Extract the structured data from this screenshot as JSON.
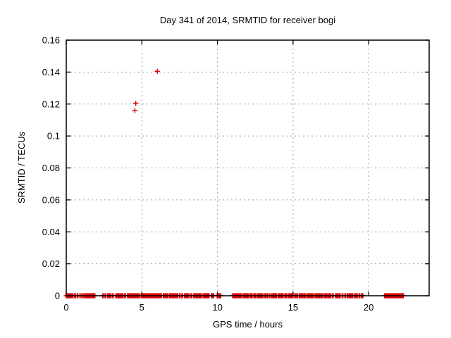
{
  "chart_data": {
    "type": "scatter",
    "title": "Day 341 of 2014, SRMTID for receiver bogi",
    "xlabel": "GPS time / hours",
    "ylabel": "SRMTID / TECUs",
    "xlim": [
      0,
      24
    ],
    "ylim": [
      0,
      0.16
    ],
    "xtick_values": [
      0,
      5,
      10,
      15,
      20
    ],
    "xtick_labels": [
      "0",
      "5",
      "10",
      "15",
      "20"
    ],
    "ytick_values": [
      0,
      0.02,
      0.04,
      0.06,
      0.08,
      0.1,
      0.12,
      0.14,
      0.16
    ],
    "ytick_labels": [
      "0",
      "0.02",
      "0.04",
      "0.06",
      "0.08",
      "0.1",
      "0.12",
      "0.14",
      "0.16"
    ],
    "grid": true,
    "legend": "none",
    "marker": "plus",
    "marker_color": "#e00000",
    "grid_color": "#a0a0a0",
    "border_color": "#000000",
    "outlier_points": [
      [
        4.54,
        0.116
      ],
      [
        4.6,
        0.1205
      ],
      [
        6.02,
        0.1405
      ]
    ],
    "zero_y": 0,
    "zero_value_segments": [
      [
        0.0,
        0.45
      ],
      [
        0.55,
        0.62
      ],
      [
        0.72,
        0.78
      ],
      [
        0.9,
        0.98
      ],
      [
        1.08,
        1.14
      ],
      [
        1.22,
        1.9
      ],
      [
        2.4,
        2.46
      ],
      [
        2.56,
        2.62
      ],
      [
        2.74,
        2.94
      ],
      [
        3.04,
        3.12
      ],
      [
        3.28,
        3.76
      ],
      [
        3.86,
        3.92
      ],
      [
        4.05,
        4.85
      ],
      [
        4.95,
        6.3
      ],
      [
        6.42,
        6.72
      ],
      [
        6.82,
        7.38
      ],
      [
        7.48,
        7.54
      ],
      [
        7.64,
        7.7
      ],
      [
        7.82,
        8.12
      ],
      [
        8.24,
        8.3
      ],
      [
        8.42,
        8.95
      ],
      [
        9.05,
        9.45
      ],
      [
        9.6,
        9.75
      ],
      [
        9.97,
        10.02
      ],
      [
        10.08,
        10.13
      ],
      [
        10.18,
        10.22
      ],
      [
        11.0,
        11.6
      ],
      [
        11.7,
        12.05
      ],
      [
        12.15,
        12.3
      ],
      [
        12.4,
        12.55
      ],
      [
        12.65,
        13.0
      ],
      [
        13.1,
        13.3
      ],
      [
        13.4,
        13.46
      ],
      [
        13.56,
        13.9
      ],
      [
        14.0,
        14.35
      ],
      [
        14.45,
        14.55
      ],
      [
        14.65,
        15.0
      ],
      [
        15.1,
        15.3
      ],
      [
        15.4,
        15.85
      ],
      [
        15.95,
        16.35
      ],
      [
        16.45,
        16.95
      ],
      [
        17.05,
        17.5
      ],
      [
        17.6,
        17.66
      ],
      [
        17.8,
        18.12
      ],
      [
        18.24,
        18.3
      ],
      [
        18.42,
        18.48
      ],
      [
        18.58,
        18.95
      ],
      [
        19.05,
        19.25
      ],
      [
        19.35,
        19.42
      ],
      [
        19.52,
        19.62
      ],
      [
        21.05,
        22.3
      ]
    ]
  }
}
